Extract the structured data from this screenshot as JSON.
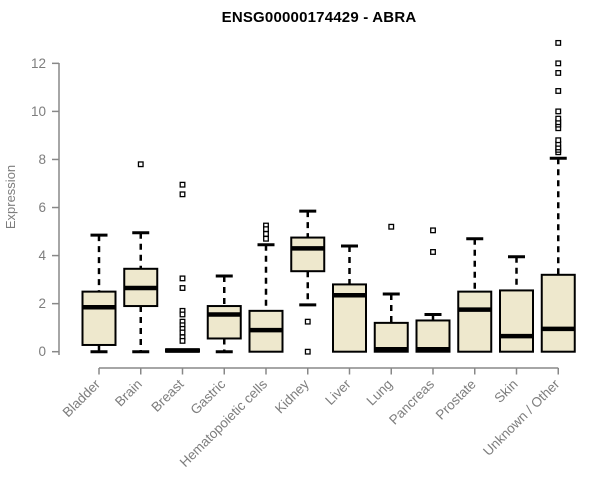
{
  "chart_data": {
    "type": "boxplot",
    "title": "ENSG00000174429 - ABRA",
    "xlabel": "",
    "ylabel": "Expression",
    "ylim": [
      0,
      12
    ],
    "yticks": [
      0,
      2,
      4,
      6,
      8,
      10,
      12
    ],
    "grid": false,
    "legend": "none",
    "colors": {
      "box_fill": "#EEE8CD",
      "box_stroke": "#000000",
      "median": "#000000",
      "whisker": "#000000",
      "outlier_stroke": "#000000",
      "outlier_fill": "#ffffff",
      "axis": "#888888",
      "tick_label": "#7d7d7d",
      "title": "#000000",
      "background": "#ffffff"
    },
    "categories": [
      "Bladder",
      "Brain",
      "Breast",
      "Gastric",
      "Hematopoietic cells",
      "Kidney",
      "Liver",
      "Lung",
      "Pancreas",
      "Prostate",
      "Skin",
      "Unknown / Other"
    ],
    "series": [
      {
        "category": "Bladder",
        "whisker_low": 0,
        "q1": 0.28,
        "median": 1.85,
        "q3": 2.5,
        "whisker_high": 4.85,
        "outliers": []
      },
      {
        "category": "Brain",
        "whisker_low": 0,
        "q1": 1.9,
        "median": 2.65,
        "q3": 3.45,
        "whisker_high": 4.95,
        "outliers": [
          7.8
        ]
      },
      {
        "category": "Breast",
        "whisker_low": 0,
        "q1": 0,
        "median": 0.05,
        "q3": 0.1,
        "whisker_high": 0.1,
        "outliers": [
          6.95,
          6.55,
          3.05,
          2.65,
          1.7,
          1.55,
          1.25,
          1.1,
          0.95,
          0.8,
          0.6,
          0.45
        ]
      },
      {
        "category": "Gastric",
        "whisker_low": 0,
        "q1": 0.55,
        "median": 1.55,
        "q3": 1.9,
        "whisker_high": 3.15,
        "outliers": []
      },
      {
        "category": "Hematopoietic cells",
        "whisker_low": 0,
        "q1": 0,
        "median": 0.9,
        "q3": 1.7,
        "whisker_high": 4.45,
        "outliers": [
          5.25,
          5.1,
          4.9,
          4.7
        ]
      },
      {
        "category": "Kidney",
        "whisker_low": 1.95,
        "q1": 3.35,
        "median": 4.3,
        "q3": 4.75,
        "whisker_high": 5.85,
        "outliers": [
          1.25,
          0
        ]
      },
      {
        "category": "Liver",
        "whisker_low": 0,
        "q1": 0,
        "median": 2.35,
        "q3": 2.8,
        "whisker_high": 4.4,
        "outliers": []
      },
      {
        "category": "Lung",
        "whisker_low": 0,
        "q1": 0,
        "median": 0.1,
        "q3": 1.2,
        "whisker_high": 2.4,
        "outliers": [
          5.2
        ]
      },
      {
        "category": "Pancreas",
        "whisker_low": 0,
        "q1": 0,
        "median": 0.1,
        "q3": 1.3,
        "whisker_high": 1.55,
        "outliers": [
          5.05,
          4.15
        ]
      },
      {
        "category": "Prostate",
        "whisker_low": 0,
        "q1": 0,
        "median": 1.75,
        "q3": 2.5,
        "whisker_high": 4.7,
        "outliers": []
      },
      {
        "category": "Skin",
        "whisker_low": 0,
        "q1": 0,
        "median": 0.65,
        "q3": 2.55,
        "whisker_high": 3.95,
        "outliers": []
      },
      {
        "category": "Unknown / Other",
        "whisker_low": 0,
        "q1": 0,
        "median": 0.95,
        "q3": 3.2,
        "whisker_high": 8.05,
        "outliers": [
          8.3,
          8.4,
          8.5,
          8.65,
          8.8,
          9.3,
          9.45,
          9.55,
          9.7,
          10.0,
          10.85,
          11.6,
          12.0,
          12.85
        ]
      }
    ]
  }
}
